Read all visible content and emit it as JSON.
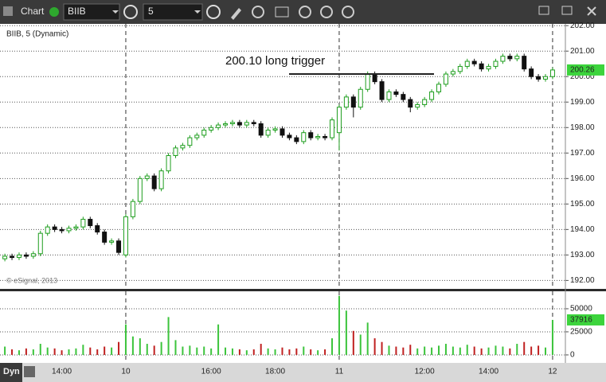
{
  "toolbar": {
    "title": "Chart",
    "symbol": "BIIB",
    "interval": "5"
  },
  "footer": {
    "mode": "Dyn"
  },
  "chart_data": {
    "type": "candlestick",
    "title": "BIIB, 5 (Dynamic)",
    "watermark": "© eSignal, 2013",
    "categories": [
      null,
      null,
      null,
      null,
      null,
      null,
      null,
      null,
      "14:00",
      null,
      null,
      null,
      null,
      null,
      null,
      null,
      null,
      "10",
      null,
      null,
      null,
      null,
      null,
      null,
      null,
      null,
      null,
      null,
      null,
      "16:00",
      null,
      null,
      null,
      null,
      null,
      null,
      null,
      null,
      "18:00",
      null,
      null,
      null,
      null,
      null,
      null,
      null,
      null,
      "11",
      null,
      null,
      null,
      null,
      null,
      null,
      null,
      null,
      null,
      null,
      null,
      "12:00",
      null,
      null,
      null,
      null,
      null,
      null,
      null,
      null,
      "14:00",
      null,
      null,
      null,
      null,
      null,
      null,
      null,
      null,
      "12"
    ],
    "open": [
      192.85,
      192.95,
      192.9,
      193.0,
      192.95,
      193.05,
      193.85,
      194.1,
      194.0,
      193.95,
      194.05,
      194.1,
      194.4,
      194.15,
      193.9,
      193.5,
      193.55,
      193.0,
      194.5,
      195.1,
      196.0,
      196.1,
      195.6,
      196.3,
      196.9,
      197.2,
      197.3,
      197.6,
      197.7,
      197.9,
      198.0,
      198.1,
      198.15,
      198.2,
      198.1,
      198.2,
      198.15,
      197.7,
      197.9,
      197.95,
      197.7,
      197.6,
      197.45,
      197.8,
      197.6,
      197.65,
      197.6,
      197.8,
      198.8,
      199.2,
      198.8,
      199.5,
      200.1,
      199.8,
      199.1,
      199.4,
      199.3,
      199.1,
      198.8,
      198.9,
      199.1,
      199.4,
      199.7,
      200.1,
      200.2,
      200.4,
      200.6,
      200.5,
      200.3,
      200.4,
      200.6,
      200.8,
      200.7,
      200.8,
      200.3,
      200.0,
      199.9,
      200.0
    ],
    "high": [
      193.05,
      193.05,
      193.1,
      193.1,
      193.15,
      193.95,
      194.2,
      194.2,
      194.1,
      194.15,
      194.2,
      194.5,
      194.5,
      194.25,
      194.0,
      193.65,
      193.65,
      194.6,
      195.2,
      196.1,
      196.2,
      196.2,
      196.4,
      197.0,
      197.3,
      197.4,
      197.7,
      197.8,
      198.0,
      198.1,
      198.2,
      198.25,
      198.3,
      198.3,
      198.3,
      198.3,
      198.25,
      198.0,
      198.05,
      198.05,
      197.8,
      197.7,
      197.9,
      197.9,
      197.75,
      197.75,
      198.4,
      198.9,
      199.3,
      199.3,
      199.6,
      200.2,
      200.2,
      199.9,
      199.5,
      199.5,
      199.4,
      199.2,
      199.0,
      199.2,
      199.5,
      199.8,
      200.2,
      200.3,
      200.5,
      200.7,
      200.7,
      200.6,
      200.5,
      200.7,
      200.9,
      200.9,
      200.9,
      200.9,
      200.4,
      200.1,
      200.1,
      200.36
    ],
    "low": [
      192.75,
      192.8,
      192.8,
      192.85,
      192.85,
      192.95,
      193.75,
      193.9,
      193.85,
      193.85,
      193.95,
      194.0,
      194.05,
      193.8,
      193.4,
      193.4,
      193.0,
      192.9,
      194.4,
      195.0,
      195.9,
      195.5,
      195.5,
      196.2,
      196.8,
      197.1,
      197.2,
      197.5,
      197.6,
      197.8,
      197.9,
      198.0,
      198.05,
      198.0,
      198.0,
      198.05,
      197.6,
      197.6,
      197.8,
      197.6,
      197.5,
      197.35,
      197.35,
      197.5,
      197.5,
      197.5,
      197.5,
      197.1,
      198.7,
      198.4,
      198.7,
      199.4,
      199.7,
      199.0,
      199.0,
      199.2,
      199.0,
      198.6,
      198.7,
      198.8,
      199.0,
      199.3,
      199.6,
      200.0,
      200.1,
      200.3,
      200.4,
      200.2,
      200.2,
      200.3,
      200.5,
      200.6,
      200.6,
      200.2,
      199.9,
      199.8,
      199.8,
      199.9
    ],
    "close": [
      192.95,
      192.9,
      193.0,
      192.95,
      193.05,
      193.85,
      194.1,
      194.0,
      193.95,
      194.05,
      194.1,
      194.4,
      194.15,
      193.9,
      193.5,
      193.55,
      193.1,
      194.5,
      195.1,
      196.0,
      196.1,
      195.6,
      196.3,
      196.9,
      197.2,
      197.3,
      197.6,
      197.7,
      197.9,
      198.0,
      198.1,
      198.15,
      198.2,
      198.1,
      198.2,
      198.15,
      197.7,
      197.9,
      197.95,
      197.7,
      197.6,
      197.45,
      197.8,
      197.6,
      197.65,
      197.6,
      198.3,
      198.8,
      199.2,
      198.8,
      199.5,
      200.1,
      199.8,
      199.1,
      199.4,
      199.3,
      199.1,
      198.8,
      198.9,
      199.1,
      199.4,
      199.7,
      200.1,
      200.2,
      200.4,
      200.6,
      200.5,
      200.3,
      200.4,
      200.6,
      200.8,
      200.7,
      200.8,
      200.3,
      200.0,
      199.9,
      200.0,
      200.26
    ],
    "volume": [
      9000,
      6000,
      5000,
      7000,
      6000,
      12000,
      8000,
      7000,
      5000,
      6000,
      7000,
      11000,
      8000,
      6000,
      9000,
      8000,
      14000,
      33000,
      20000,
      18000,
      12000,
      10000,
      14000,
      41000,
      16000,
      9000,
      10000,
      8000,
      9000,
      7000,
      33000,
      8000,
      7000,
      6000,
      5000,
      6000,
      12000,
      7000,
      6000,
      8000,
      6000,
      7000,
      9000,
      6000,
      5000,
      6000,
      18000,
      64000,
      48000,
      26000,
      22000,
      35000,
      18000,
      14000,
      10000,
      9000,
      8000,
      11000,
      7000,
      9000,
      8000,
      10000,
      12000,
      9000,
      8000,
      11000,
      9000,
      7000,
      8000,
      10000,
      9000,
      7000,
      12000,
      14000,
      9000,
      10000,
      8000,
      37916
    ],
    "up_color": "#1e9e1e",
    "down_color": "#111111",
    "volume_up_color": "#3cc43c",
    "volume_down_color": "#c02020",
    "ylim": [
      191.7,
      202.1
    ],
    "yticks": [
      {
        "value": 192,
        "label": "192.00"
      },
      {
        "value": 193,
        "label": "193.00"
      },
      {
        "value": 194,
        "label": "194.00"
      },
      {
        "value": 195,
        "label": "195.00"
      },
      {
        "value": 196,
        "label": "196.00"
      },
      {
        "value": 197,
        "label": "197.00"
      },
      {
        "value": 198,
        "label": "198.00"
      },
      {
        "value": 199,
        "label": "199.00"
      },
      {
        "value": 200,
        "label": "200.00"
      },
      {
        "value": 201,
        "label": "201.00"
      },
      {
        "value": 202,
        "label": "202.00"
      }
    ],
    "volume_ylim": [
      -7800,
      67200
    ],
    "volume_yticks": [
      0,
      25000,
      50000
    ],
    "grid": true,
    "annotation": {
      "text": "200.10 long trigger",
      "y": 200.1
    }
  }
}
